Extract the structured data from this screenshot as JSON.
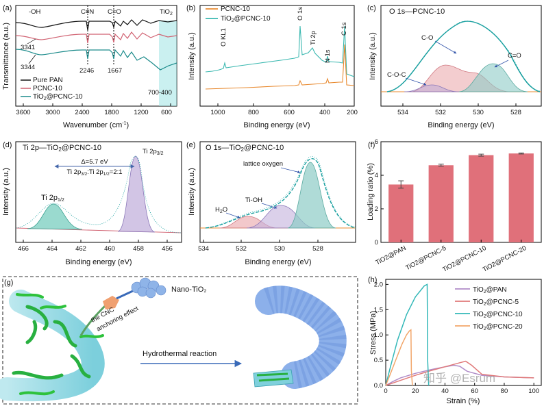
{
  "chart_data": [
    {
      "panel": "(a)",
      "type": "line",
      "xlabel": "Wavenumber (cm⁻¹)",
      "ylabel": "Transmittance (a.u.)",
      "xlim": [
        3600,
        400
      ],
      "xticks": [
        3600,
        3000,
        2400,
        1800,
        1200,
        600
      ],
      "series": [
        {
          "name": "Pure PAN",
          "color": "#111111"
        },
        {
          "name": "PCNC-10",
          "color": "#d06070"
        },
        {
          "name": "TiO₂@PCNC-10",
          "color": "#1a8a8a"
        }
      ],
      "annotations": [
        "-OH",
        "C≡N",
        "C=O",
        "TiO₂",
        "3341",
        "3344",
        "2246",
        "1667",
        "700-400"
      ]
    },
    {
      "panel": "(b)",
      "type": "line",
      "xlabel": "Binding energy (eV)",
      "ylabel": "Intensity (a.u.)",
      "xlim": [
        1050,
        200
      ],
      "xticks": [
        1000,
        800,
        600,
        400,
        200
      ],
      "series": [
        {
          "name": "PCNC-10",
          "color": "#e8892e"
        },
        {
          "name": "TiO₂@PCNC-10",
          "color": "#3ab8b0"
        }
      ],
      "annotations": [
        "O KL1",
        "O 1s",
        "Ti 2p",
        "N 1s",
        "C 1s"
      ]
    },
    {
      "panel": "(c)",
      "title": "O 1s—PCNC-10",
      "type": "line",
      "xlabel": "Binding energy (eV)",
      "ylabel": "Intensity (a.u.)",
      "xlim": [
        535.5,
        527
      ],
      "xticks": [
        534,
        532,
        530,
        528
      ],
      "annotations": [
        "C-O",
        "C=O",
        "C-O-C"
      ]
    },
    {
      "panel": "(d)",
      "title": "Ti 2p—TiO₂@PCNC-10",
      "type": "line",
      "xlabel": "Binding energy (eV)",
      "ylabel": "Intensity (a.u.)",
      "xlim": [
        466,
        455
      ],
      "xticks": [
        466,
        464,
        462,
        460,
        458,
        456
      ],
      "annotations": [
        "Ti 2p₃/₂",
        "Ti 2p₁/₂",
        "Δ=5.7 eV",
        "Ti 2p₃/₂:Ti 2p₁/₂=2:1"
      ]
    },
    {
      "panel": "(e)",
      "title": "O 1s—TiO₂@PCNC-10",
      "type": "line",
      "xlabel": "Binding energy (eV)",
      "ylabel": "Intensity (a.u.)",
      "xlim": [
        534.5,
        526.5
      ],
      "xticks": [
        534,
        532,
        530,
        528
      ],
      "annotations": [
        "lattice oxygen",
        "Ti-OH",
        "H₂O"
      ]
    },
    {
      "panel": "(f)",
      "type": "bar",
      "ylabel": "Loading ratio (%)",
      "ylim": [
        0,
        6
      ],
      "yticks": [
        0,
        2,
        4,
        6
      ],
      "categories": [
        "TiO2@PAN",
        "TiO2@PCNC-5",
        "TiO2@PCNC-10",
        "TiO2@PCNC-20"
      ],
      "values": [
        3.45,
        4.6,
        5.2,
        5.3
      ],
      "errors": [
        0.22,
        0.06,
        0.06,
        0.03
      ],
      "color": "#e0707a"
    },
    {
      "panel": "(h)",
      "type": "line",
      "xlabel": "Strain (%)",
      "ylabel": "Stress (MPa)",
      "xlim": [
        0,
        105
      ],
      "ylim": [
        0,
        2.1
      ],
      "xticks": [
        0,
        20,
        40,
        60,
        80,
        100
      ],
      "yticks": [
        0.0,
        0.5,
        1.0,
        1.5,
        2.0
      ],
      "series": [
        {
          "name": "TiO₂@PAN",
          "color": "#b08cc8",
          "x": [
            0,
            5,
            10,
            20,
            30,
            40,
            46,
            50,
            55,
            65,
            80,
            100
          ],
          "y": [
            0,
            0.08,
            0.15,
            0.24,
            0.31,
            0.37,
            0.4,
            0.38,
            0.28,
            0.2,
            0.17,
            0.15
          ]
        },
        {
          "name": "TiO₂@PCNC-5",
          "color": "#e07a7a",
          "x": [
            0,
            5,
            10,
            20,
            30,
            40,
            50,
            54,
            58,
            65,
            80,
            100
          ],
          "y": [
            0,
            0.05,
            0.1,
            0.2,
            0.29,
            0.37,
            0.45,
            0.48,
            0.4,
            0.22,
            0.17,
            0.15
          ]
        },
        {
          "name": "TiO₂@PCNC-10",
          "color": "#33b8b8",
          "x": [
            0,
            3,
            8,
            14,
            20,
            26,
            28,
            28.3,
            29
          ],
          "y": [
            0,
            0.35,
            0.9,
            1.4,
            1.75,
            1.97,
            2.0,
            0.5,
            0
          ]
        },
        {
          "name": "TiO₂@PCNC-20",
          "color": "#f2a66a",
          "x": [
            0,
            3,
            7,
            11,
            14,
            16,
            17,
            17.3,
            18
          ],
          "y": [
            0,
            0.22,
            0.52,
            0.82,
            1.0,
            1.08,
            1.1,
            0.3,
            0
          ]
        }
      ]
    }
  ],
  "panel_g": {
    "label": "(g)",
    "nano_tio2": "Nano-TiO₂",
    "anchoring": [
      "the CNC",
      "anchoring effect"
    ],
    "reaction": "Hydrothermal reaction"
  },
  "watermark": "知乎 @Esrum"
}
